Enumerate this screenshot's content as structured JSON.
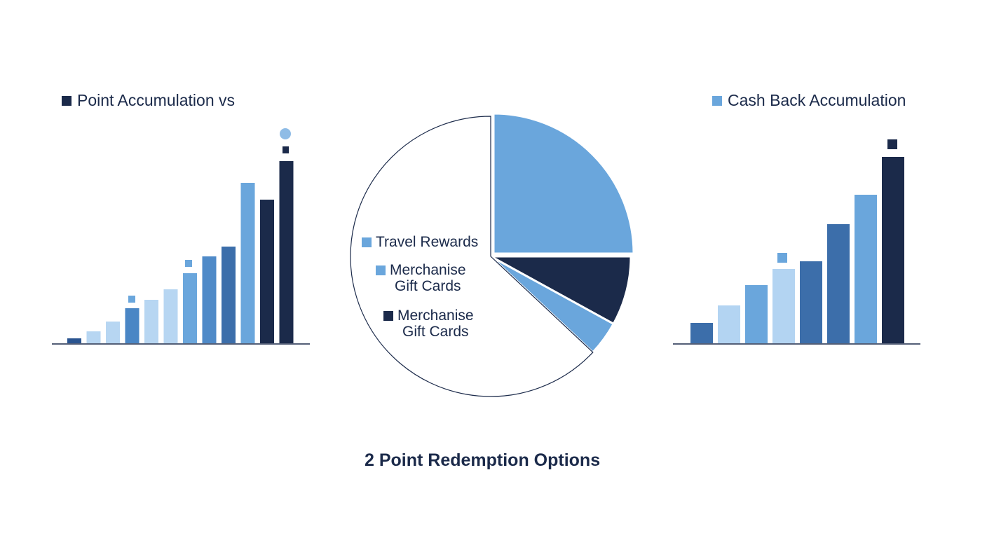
{
  "chart_data": [
    {
      "type": "bar",
      "series": [
        {
          "name": "Point Accumulation vs",
          "color": "#1b2a4a",
          "values": [
            7,
            17,
            31,
            50,
            62,
            77,
            100,
            124,
            138,
            229,
            205,
            260
          ],
          "bar_colors": [
            "#2a5490",
            "#b7d6f2",
            "#b7d6f2",
            "#4a86c5",
            "#b7d6f2",
            "#b7d6f2",
            "#6aa6dc",
            "#4f8ac8",
            "#3c6eaa",
            "#6aa6dc",
            "#1b2a4a",
            "#1b2a4a"
          ]
        }
      ]
    },
    {
      "type": "pie",
      "title": "2 Point Redemption Options",
      "labels": [
        "Travel Rewards",
        "Merchanise\nGift Cards",
        "Merchanise\nGift Cards",
        null
      ],
      "values": [
        25,
        8,
        4,
        63
      ],
      "colors": [
        "#6aa6dc",
        "#1b2a4a",
        "#6aa6dc",
        "#ffffff"
      ]
    },
    {
      "type": "bar",
      "series": [
        {
          "name": "Cash Back Accumulation",
          "color": "#6aa6dc",
          "values": [
            29,
            54,
            83,
            106,
            117,
            170,
            212,
            266
          ],
          "bar_colors": [
            "#3c6eaa",
            "#b3d4f2",
            "#6aa6dc",
            "#b3d4f2",
            "#3c6eaa",
            "#3c6eaa",
            "#6aa6dc",
            "#1b2a4a"
          ]
        }
      ]
    }
  ]
}
